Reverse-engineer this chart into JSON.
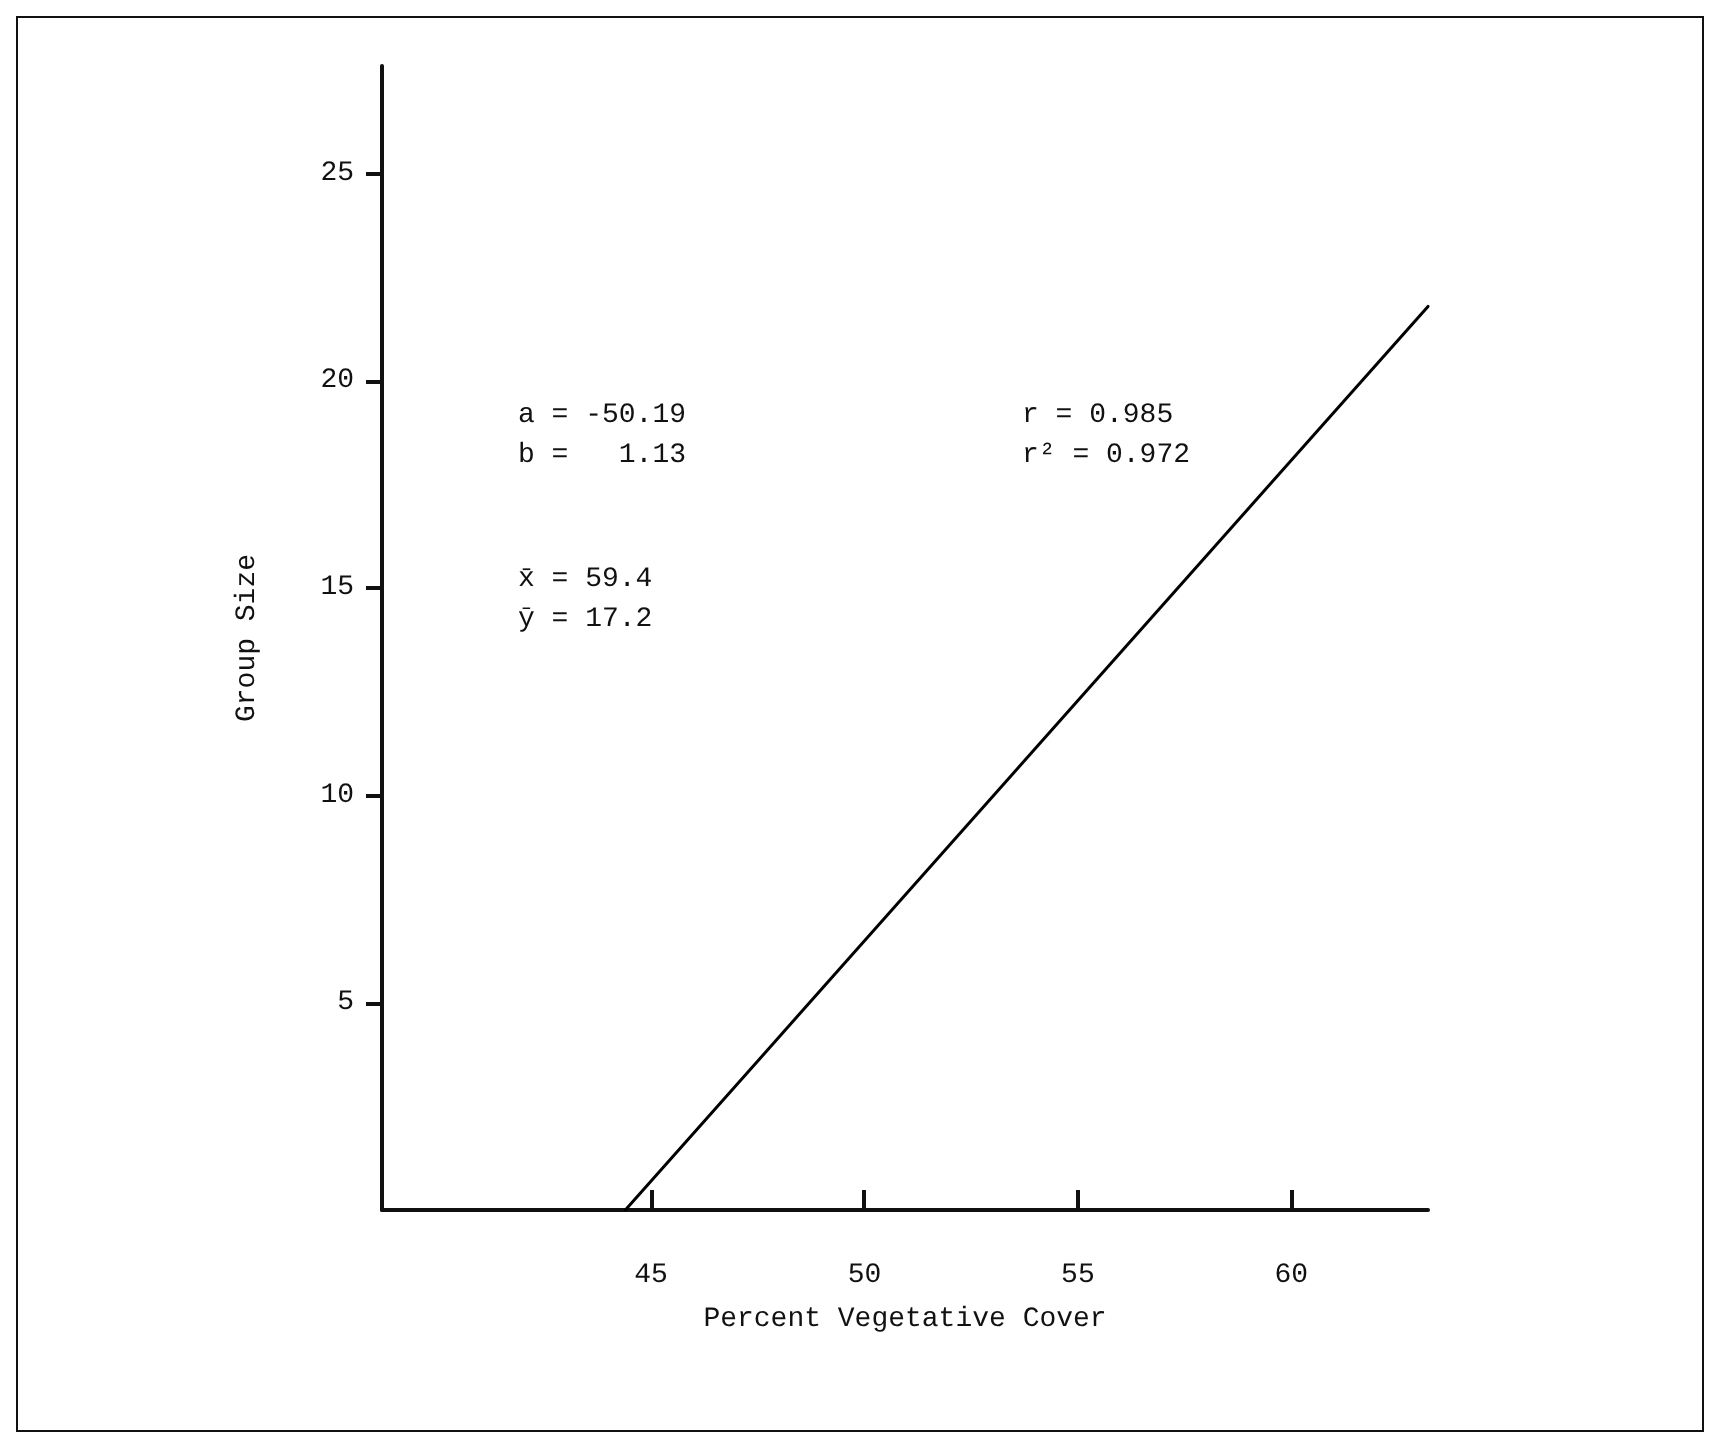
{
  "chart_data": {
    "type": "line",
    "xlabel": "Percent Vegetative Cover",
    "ylabel": "Group Size",
    "series": [
      {
        "x": [
          44.4,
          63.2
        ],
        "values": [
          0,
          21.8
        ],
        "color": "#000000"
      }
    ],
    "xlim": [
      38.7,
      63.2
    ],
    "xticks": [
      45,
      50,
      55,
      60
    ],
    "ylim": [
      0,
      27.6
    ],
    "yticks": [
      5,
      10,
      15,
      20,
      25
    ],
    "annotations": [
      "a = -50.19",
      "b =   1.13",
      "x̄ = 59.4",
      "ȳ = 17.2",
      "r = 0.985",
      "r² = 0.972"
    ],
    "grid": false,
    "marker": "none",
    "line_style": "solid"
  }
}
